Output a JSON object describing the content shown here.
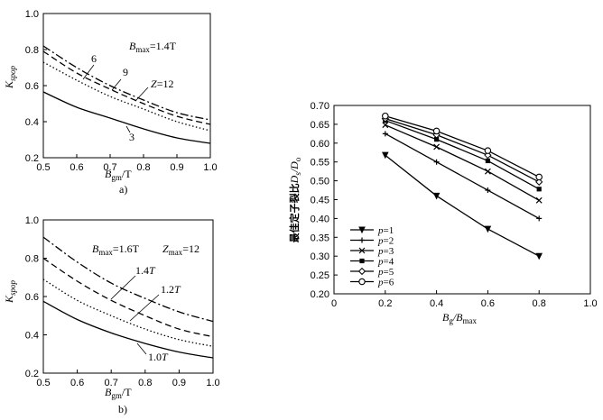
{
  "chart_data": [
    {
      "type": "line",
      "id": "a",
      "panel_label": "a)",
      "xlabel": "B_gm/T",
      "ylabel": "K_spop",
      "xlim": [
        0.5,
        1.0
      ],
      "ylim": [
        0.2,
        1.0
      ],
      "xticks": [
        "0.5",
        "0.6",
        "0.7",
        "0.8",
        "0.9",
        "1.0"
      ],
      "yticks": [
        "0.2",
        "0.4",
        "0.6",
        "0.8",
        "1.0"
      ],
      "header_annotation": "B_max=1.4T",
      "x": [
        0.5,
        0.6,
        0.7,
        0.8,
        0.9,
        1.0
      ],
      "series": [
        {
          "name": "3",
          "style": "solid",
          "values": [
            0.565,
            0.48,
            0.42,
            0.36,
            0.31,
            0.28
          ]
        },
        {
          "name": "Z=12",
          "style": "dotted",
          "values": [
            0.73,
            0.63,
            0.54,
            0.47,
            0.4,
            0.35
          ]
        },
        {
          "name": "9",
          "style": "dashed",
          "values": [
            0.79,
            0.67,
            0.58,
            0.5,
            0.43,
            0.385
          ]
        },
        {
          "name": "6",
          "style": "dashdot",
          "values": [
            0.82,
            0.7,
            0.6,
            0.52,
            0.45,
            0.41
          ]
        }
      ]
    },
    {
      "type": "line",
      "id": "b",
      "panel_label": "b)",
      "xlabel": "B_gm/T",
      "ylabel": "K_spop",
      "xlim": [
        0.5,
        1.0
      ],
      "ylim": [
        0.2,
        1.0
      ],
      "xticks": [
        "0.5",
        "0.6",
        "0.7",
        "0.8",
        "0.9",
        "1.0"
      ],
      "yticks": [
        "0.2",
        "0.4",
        "0.6",
        "0.8",
        "1.0"
      ],
      "header_annotation_1": "B_max=1.6T",
      "header_annotation_2": "Z_max=12",
      "x": [
        0.5,
        0.6,
        0.7,
        0.8,
        0.9,
        1.0
      ],
      "series": [
        {
          "name": "1.0T",
          "style": "solid",
          "values": [
            0.575,
            0.48,
            0.41,
            0.355,
            0.31,
            0.28
          ]
        },
        {
          "name": "1.2T",
          "style": "dotted",
          "values": [
            0.69,
            0.58,
            0.5,
            0.43,
            0.375,
            0.34
          ]
        },
        {
          "name": "1.4T",
          "style": "dashed",
          "values": [
            0.8,
            0.68,
            0.58,
            0.5,
            0.43,
            0.39
          ]
        },
        {
          "name": "",
          "style": "dashdot",
          "values": [
            0.91,
            0.78,
            0.67,
            0.59,
            0.52,
            0.47
          ]
        }
      ]
    },
    {
      "type": "line",
      "id": "c",
      "xlabel": "B_g/B_max",
      "ylabel": "最佳定子裂比 D_s/D_o",
      "xlim": [
        0,
        1.0
      ],
      "ylim": [
        0.2,
        0.7
      ],
      "xticks": [
        "0",
        "0.2",
        "0.4",
        "0.6",
        "0.8",
        "1.0"
      ],
      "yticks": [
        "0.20",
        "0.25",
        "0.30",
        "0.35",
        "0.40",
        "0.45",
        "0.50",
        "0.55",
        "0.60",
        "0.65",
        "0.70"
      ],
      "legend_position": "left-center",
      "x": [
        0.2,
        0.4,
        0.6,
        0.8
      ],
      "series": [
        {
          "name": "p=1",
          "marker": "tri-down",
          "values": [
            0.568,
            0.46,
            0.372,
            0.3
          ]
        },
        {
          "name": "p=2",
          "marker": "plus",
          "values": [
            0.625,
            0.55,
            0.475,
            0.4
          ]
        },
        {
          "name": "p=3",
          "marker": "x",
          "values": [
            0.648,
            0.59,
            0.525,
            0.448
          ]
        },
        {
          "name": "p=4",
          "marker": "square",
          "values": [
            0.66,
            0.61,
            0.553,
            0.478
          ]
        },
        {
          "name": "p=5",
          "marker": "diamond",
          "values": [
            0.665,
            0.622,
            0.568,
            0.497
          ]
        },
        {
          "name": "p=6",
          "marker": "circle",
          "values": [
            0.672,
            0.632,
            0.58,
            0.51
          ]
        }
      ]
    }
  ],
  "ui": {
    "a_label": "a)",
    "b_label": "b)",
    "xlabel_a_main": "B",
    "xlabel_a_sub": "gm",
    "xlabel_a_tail": "/T",
    "xlabel_b_main": "B",
    "xlabel_b_sub": "gm",
    "xlabel_b_tail": "/T",
    "ylabel_a_main": "K",
    "ylabel_a_sub": "spop",
    "ylabel_b_main": "K",
    "ylabel_b_sub": "spop",
    "a_head_B": "B",
    "a_head_sub": "max",
    "a_head_val": "=1.4T",
    "a_lbl_6": "6",
    "a_lbl_9": "9",
    "a_lbl_Z": "Z",
    "a_lbl_Zval": "=12",
    "a_lbl_3": "3",
    "b_head_B": "B",
    "b_head_sub": "max",
    "b_head_val": "=1.6T",
    "b_head_Z": "Z",
    "b_head_Zsub": "max",
    "b_head_Zval": "=12",
    "b_lbl_14": "1.4",
    "b_lbl_14T": "T",
    "b_lbl_12": "1.2",
    "b_lbl_12T": "T",
    "b_lbl_10": "1.0",
    "b_lbl_10T": "T",
    "c_xlabel_B": "B",
    "c_xlabel_g": "g",
    "c_xlabel_slash": "/B",
    "c_xlabel_max": "max",
    "c_ylabel_cn": "最佳定子裂比",
    "c_ylabel_D": "D",
    "c_ylabel_s": "s",
    "c_ylabel_slash": "/D",
    "c_ylabel_o": "o",
    "legend_p_italic": "p"
  }
}
